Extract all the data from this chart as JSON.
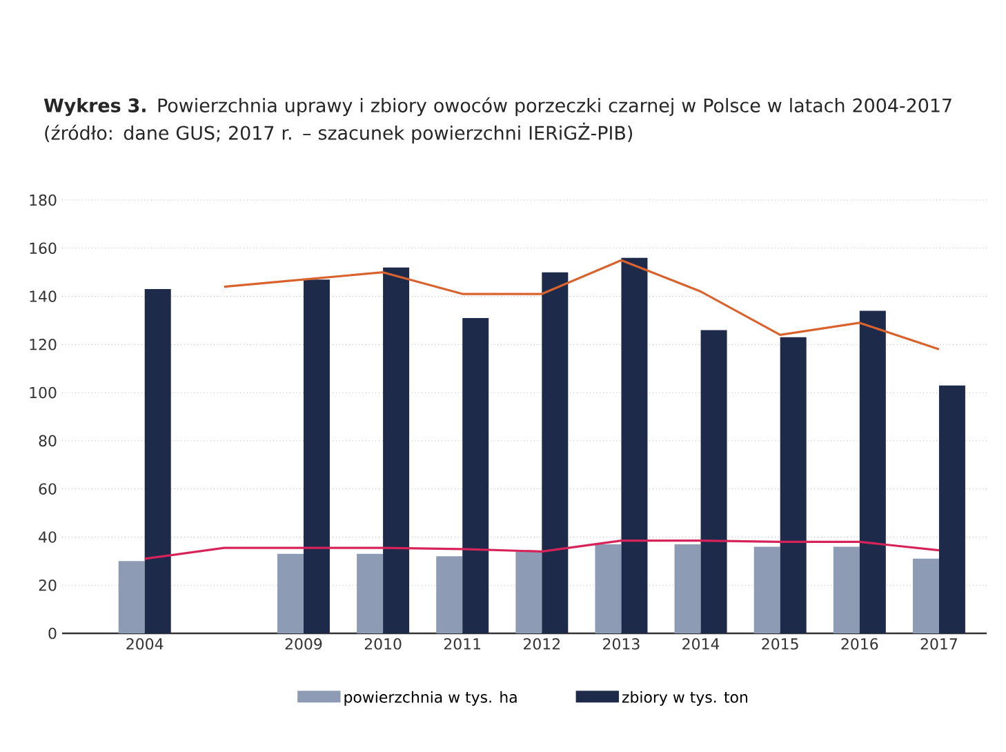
{
  "chart_data": {
    "type": "bar",
    "title": "**Wykres 3.** Powierzchnia uprawy i zbiory owoców porzeczki czarnej w Polsce w latach 2004-2017 (źródło: dane GUS; 2017 r. – szacunek powierzchni IERiGŻ-PIB)",
    "categories": [
      "2004",
      null,
      "2009",
      "2010",
      "2011",
      "2012",
      "2013",
      "2014",
      "2015",
      "2016",
      "2017"
    ],
    "series": [
      {
        "name": "powierzchnia w tys. ha",
        "color": "#8e9bb5",
        "values": [
          30,
          null,
          33,
          33,
          32,
          34,
          37,
          37,
          36,
          36,
          31
        ]
      },
      {
        "name": "zbiory w tys. ton",
        "color": "#1e2a4a",
        "values": [
          143,
          null,
          147,
          152,
          131,
          150,
          156,
          126,
          123,
          134,
          103
        ]
      },
      {
        "type": "line",
        "color": "#d9632e",
        "values": [
          null,
          144,
          147,
          150,
          141,
          141,
          155,
          142,
          124,
          129,
          118
        ]
      },
      {
        "type": "line",
        "color": "#d6245a",
        "values": [
          31,
          35.5,
          35.5,
          35.5,
          35,
          34,
          38.5,
          38.5,
          38,
          38,
          34.5
        ]
      }
    ],
    "ylim": [
      0,
      180
    ],
    "yticks": [
      0,
      20,
      40,
      60,
      80,
      100,
      120,
      140,
      160,
      180
    ],
    "grid": "y",
    "legend": "bottom"
  }
}
